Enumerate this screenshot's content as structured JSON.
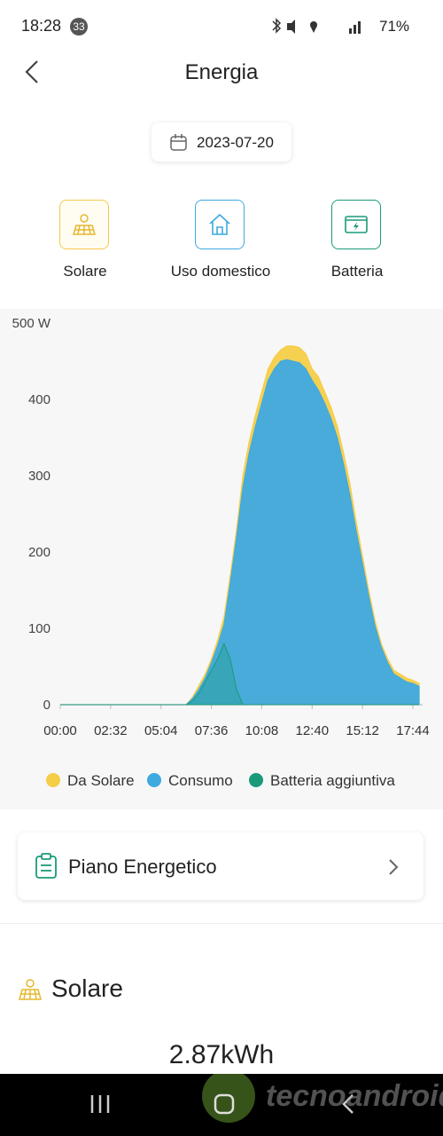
{
  "status_bar": {
    "time": "18:28",
    "notifications": "33",
    "battery": "71%"
  },
  "header": {
    "title": "Energia"
  },
  "date": "2023-07-20",
  "tabs": [
    {
      "label": "Solare"
    },
    {
      "label": "Uso domestico"
    },
    {
      "label": "Batteria"
    }
  ],
  "chart_data": {
    "type": "area",
    "x": [
      "00:00",
      "00:19",
      "00:38",
      "00:57",
      "01:16",
      "01:35",
      "01:54",
      "02:13",
      "02:32",
      "02:51",
      "03:10",
      "03:29",
      "03:48",
      "04:07",
      "04:26",
      "04:45",
      "05:04",
      "05:23",
      "05:42",
      "06:01",
      "06:20",
      "06:39",
      "06:58",
      "07:17",
      "07:36",
      "07:55",
      "08:14",
      "08:33",
      "08:52",
      "09:11",
      "09:30",
      "09:49",
      "10:08",
      "10:27",
      "10:46",
      "11:05",
      "11:24",
      "11:43",
      "12:02",
      "12:21",
      "12:40",
      "12:59",
      "13:18",
      "13:37",
      "13:56",
      "14:15",
      "14:34",
      "14:53",
      "15:12",
      "15:31",
      "15:50",
      "16:09",
      "16:28",
      "16:47",
      "17:06",
      "17:25",
      "17:44",
      "18:03"
    ],
    "series": [
      {
        "name": "Da Solare",
        "color": "#f5cd47",
        "values": [
          0,
          0,
          0,
          0,
          0,
          0,
          0,
          0,
          0,
          0,
          0,
          0,
          0,
          0,
          0,
          0,
          0,
          0,
          0,
          0,
          0,
          10,
          25,
          40,
          60,
          85,
          115,
          170,
          230,
          300,
          345,
          380,
          410,
          440,
          455,
          465,
          470,
          470,
          468,
          460,
          440,
          430,
          410,
          390,
          365,
          330,
          290,
          240,
          195,
          150,
          110,
          80,
          60,
          45,
          40,
          35,
          32,
          28
        ]
      },
      {
        "name": "Consumo",
        "color": "#3fa9e0",
        "values": [
          0,
          0,
          0,
          0,
          0,
          0,
          0,
          0,
          0,
          0,
          0,
          0,
          0,
          0,
          0,
          0,
          0,
          0,
          0,
          0,
          0,
          8,
          20,
          35,
          55,
          78,
          105,
          160,
          220,
          285,
          330,
          365,
          395,
          425,
          440,
          450,
          452,
          450,
          448,
          440,
          425,
          412,
          395,
          375,
          350,
          315,
          275,
          228,
          185,
          142,
          103,
          75,
          55,
          40,
          35,
          30,
          28,
          24
        ]
      },
      {
        "name": "Batteria aggiuntiva",
        "color": "#1a9a7a",
        "values": [
          0,
          0,
          0,
          0,
          0,
          0,
          0,
          0,
          0,
          0,
          0,
          0,
          0,
          0,
          0,
          0,
          0,
          0,
          0,
          0,
          0,
          5,
          15,
          30,
          45,
          60,
          80,
          60,
          20,
          0,
          0,
          0,
          0,
          0,
          0,
          0,
          0,
          0,
          0,
          0,
          0,
          0,
          0,
          0,
          0,
          0,
          0,
          0,
          0,
          0,
          0,
          0,
          0,
          0,
          0,
          0,
          0,
          0
        ]
      }
    ],
    "ylim": [
      0,
      500
    ],
    "yticks": [
      0,
      100,
      200,
      300,
      400,
      {
        "value": 500,
        "label": "500 W"
      }
    ],
    "xticks": [
      "00:00",
      "02:32",
      "05:04",
      "07:36",
      "10:08",
      "12:40",
      "15:12",
      "17:44"
    ]
  },
  "plan_card": {
    "label": "Piano Energetico"
  },
  "section": {
    "title": "Solare",
    "value": "2.87kWh"
  },
  "watermark": "tecnoandroid"
}
